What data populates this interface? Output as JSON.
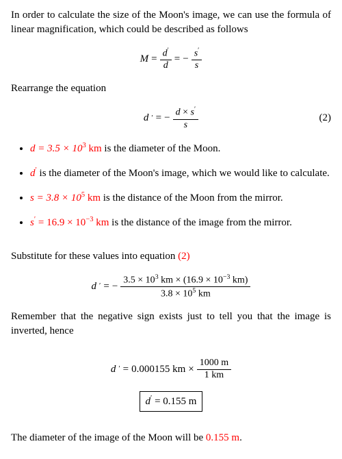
{
  "text": {
    "intro": "In order to calculate the size of the Moon's image, we can use the formula of linear magnification, which could be described as follows",
    "rearrange": "Rearrange the equation",
    "eq_num_2": "(2)",
    "bullet1_val": "d = 3.5 × 10",
    "bullet1_exp": "3",
    "bullet1_unit": " km",
    "bullet1_rest": " is the diameter of the Moon.",
    "bullet2_val": "d",
    "bullet2_rest": " is the diameter of the Moon's image, which we would like to calculate.",
    "bullet3_val": "s = 3.8 × 10",
    "bullet3_exp": "5",
    "bullet3_unit": " km",
    "bullet3_rest": " is the distance of the Moon from the mirror.",
    "bullet4_val": "s",
    "bullet4_eq": " = 16.9 × 10",
    "bullet4_exp": "−3",
    "bullet4_unit": " km",
    "bullet4_rest": " is the distance of the image from the mirror.",
    "substitute_a": "Substitute for these values into equation ",
    "substitute_ref": "(2)",
    "remember": "Remember that the negative sign exists just to tell you that the image is inverted, hence",
    "conclusion_a": "The diameter of the image of the Moon will be ",
    "conclusion_val": "0.155 m",
    "conclusion_b": "."
  },
  "eq": {
    "M": "M",
    "d": "d",
    "s": "s",
    "prime": "′",
    "eq": "=",
    "minus": "−",
    "times": "×",
    "sub_num": "3.5 × 10",
    "sub_num_exp": "3",
    "sub_num_mid": " km × (16.9 × 10",
    "sub_num_exp2": "−3",
    "sub_num_end": " km)",
    "sub_den": "3.8 × 10",
    "sub_den_exp": "5",
    "sub_den_end": " km",
    "conv_val": "0.000155 km",
    "conv_num": "1000 m",
    "conv_den": "1 km",
    "boxed_var": "d",
    "boxed_val": " = 0.155 m"
  },
  "style": {
    "highlight_color": "#ff0000",
    "body_font": "Times New Roman"
  }
}
